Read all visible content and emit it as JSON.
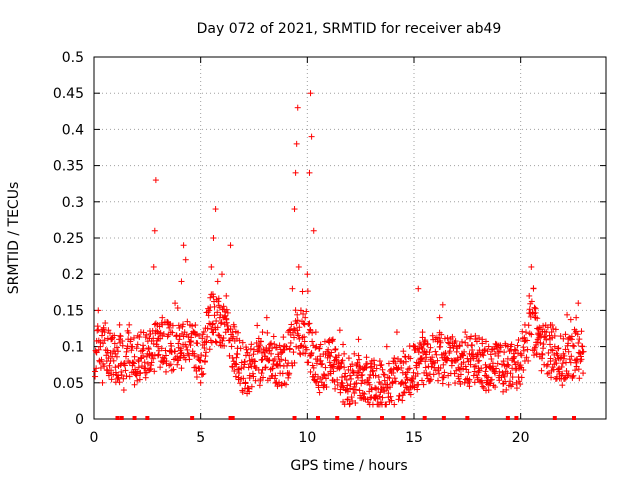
{
  "chart_data": {
    "type": "scatter",
    "title": "Day 072 of 2021, SRMTID for receiver ab49",
    "xlabel": "GPS time / hours",
    "ylabel": "SRMTID / TECUs",
    "xlim": [
      0,
      24
    ],
    "ylim": [
      0,
      0.5
    ],
    "x_ticks": [
      0,
      5,
      10,
      15,
      20
    ],
    "x_tick_labels": [
      "0",
      "5",
      "10",
      "15",
      "20"
    ],
    "y_ticks": [
      0,
      0.05,
      0.1,
      0.15,
      0.2,
      0.25,
      0.3,
      0.35,
      0.4,
      0.45,
      0.5
    ],
    "y_tick_labels": [
      "0",
      "0.05",
      "0.1",
      "0.15",
      "0.2",
      "0.25",
      "0.3",
      "0.35",
      "0.4",
      "0.45",
      "0.5"
    ],
    "grid": true,
    "marker": "+",
    "color": "#ff0000",
    "series": [
      {
        "name": "SRMTID",
        "points": [
          [
            0.1,
            0.07
          ],
          [
            0.2,
            0.15
          ],
          [
            0.3,
            0.1
          ],
          [
            0.4,
            0.05
          ],
          [
            0.5,
            0.12
          ],
          [
            0.6,
            0.08
          ],
          [
            0.7,
            0.06
          ],
          [
            0.8,
            0.11
          ],
          [
            1.0,
            0.09
          ],
          [
            1.2,
            0.13
          ],
          [
            1.4,
            0.04
          ],
          [
            1.6,
            0.08
          ],
          [
            1.8,
            0.1
          ],
          [
            2.0,
            0.06
          ],
          [
            2.2,
            0.12
          ],
          [
            2.4,
            0.07
          ],
          [
            2.6,
            0.09
          ],
          [
            2.8,
            0.21
          ],
          [
            2.85,
            0.26
          ],
          [
            2.9,
            0.33
          ],
          [
            3.0,
            0.1
          ],
          [
            3.2,
            0.14
          ],
          [
            3.4,
            0.08
          ],
          [
            3.6,
            0.12
          ],
          [
            3.8,
            0.16
          ],
          [
            4.0,
            0.11
          ],
          [
            4.1,
            0.19
          ],
          [
            4.2,
            0.24
          ],
          [
            4.3,
            0.22
          ],
          [
            4.5,
            0.13
          ],
          [
            4.7,
            0.09
          ],
          [
            4.9,
            0.07
          ],
          [
            5.0,
            0.05
          ],
          [
            5.2,
            0.08
          ],
          [
            5.4,
            0.15
          ],
          [
            5.5,
            0.21
          ],
          [
            5.6,
            0.25
          ],
          [
            5.7,
            0.29
          ],
          [
            5.8,
            0.19
          ],
          [
            5.9,
            0.14
          ],
          [
            6.0,
            0.2
          ],
          [
            6.2,
            0.17
          ],
          [
            6.4,
            0.24
          ],
          [
            6.5,
            0.12
          ],
          [
            6.7,
            0.09
          ],
          [
            6.9,
            0.07
          ],
          [
            7.1,
            0.05
          ],
          [
            7.3,
            0.06
          ],
          [
            7.5,
            0.08
          ],
          [
            7.7,
            0.1
          ],
          [
            7.9,
            0.12
          ],
          [
            8.1,
            0.14
          ],
          [
            8.3,
            0.09
          ],
          [
            8.5,
            0.06
          ],
          [
            8.7,
            0.08
          ],
          [
            8.9,
            0.1
          ],
          [
            9.1,
            0.12
          ],
          [
            9.3,
            0.18
          ],
          [
            9.4,
            0.29
          ],
          [
            9.45,
            0.34
          ],
          [
            9.5,
            0.38
          ],
          [
            9.55,
            0.43
          ],
          [
            9.6,
            0.21
          ],
          [
            9.7,
            0.15
          ],
          [
            9.8,
            0.1
          ],
          [
            9.9,
            0.14
          ],
          [
            10.0,
            0.2
          ],
          [
            10.1,
            0.34
          ],
          [
            10.15,
            0.45
          ],
          [
            10.2,
            0.39
          ],
          [
            10.3,
            0.26
          ],
          [
            10.4,
            0.12
          ],
          [
            10.6,
            0.08
          ],
          [
            10.8,
            0.06
          ],
          [
            11.0,
            0.09
          ],
          [
            11.2,
            0.11
          ],
          [
            11.4,
            0.07
          ],
          [
            11.6,
            0.05
          ],
          [
            11.8,
            0.04
          ],
          [
            12.0,
            0.06
          ],
          [
            12.2,
            0.09
          ],
          [
            12.4,
            0.11
          ],
          [
            12.6,
            0.07
          ],
          [
            12.8,
            0.05
          ],
          [
            13.0,
            0.03
          ],
          [
            13.2,
            0.06
          ],
          [
            13.4,
            0.08
          ],
          [
            13.6,
            0.04
          ],
          [
            13.8,
            0.03
          ],
          [
            14.0,
            0.05
          ],
          [
            14.2,
            0.12
          ],
          [
            14.4,
            0.08
          ],
          [
            14.6,
            0.05
          ],
          [
            14.8,
            0.07
          ],
          [
            15.0,
            0.1
          ],
          [
            15.2,
            0.18
          ],
          [
            15.4,
            0.12
          ],
          [
            15.6,
            0.06
          ],
          [
            15.8,
            0.08
          ],
          [
            16.0,
            0.11
          ],
          [
            16.2,
            0.14
          ],
          [
            16.4,
            0.09
          ],
          [
            16.6,
            0.06
          ],
          [
            16.8,
            0.08
          ],
          [
            17.0,
            0.1
          ],
          [
            17.2,
            0.07
          ],
          [
            17.4,
            0.12
          ],
          [
            17.6,
            0.09
          ],
          [
            17.8,
            0.06
          ],
          [
            18.0,
            0.08
          ],
          [
            18.2,
            0.11
          ],
          [
            18.4,
            0.05
          ],
          [
            18.6,
            0.07
          ],
          [
            18.8,
            0.09
          ],
          [
            19.0,
            0.06
          ],
          [
            19.2,
            0.08
          ],
          [
            19.4,
            0.1
          ],
          [
            19.6,
            0.07
          ],
          [
            19.8,
            0.05
          ],
          [
            20.0,
            0.09
          ],
          [
            20.2,
            0.13
          ],
          [
            20.4,
            0.17
          ],
          [
            20.5,
            0.21
          ],
          [
            20.6,
            0.18
          ],
          [
            20.7,
            0.14
          ],
          [
            20.8,
            0.11
          ],
          [
            21.0,
            0.09
          ],
          [
            21.2,
            0.12
          ],
          [
            21.4,
            0.08
          ],
          [
            21.6,
            0.1
          ],
          [
            21.8,
            0.07
          ],
          [
            22.0,
            0.09
          ],
          [
            22.2,
            0.06
          ],
          [
            22.4,
            0.11
          ],
          [
            22.6,
            0.14
          ],
          [
            22.7,
            0.16
          ],
          [
            22.8,
            0.08
          ],
          [
            22.9,
            0.1
          ]
        ]
      }
    ],
    "zero_markers": [
      1.1,
      1.3,
      1.9,
      2.5,
      4.6,
      6.4,
      6.5,
      9.4,
      10.5,
      11.4,
      12.4,
      13.5,
      14.5,
      15.5,
      16.4,
      17.5,
      19.4,
      19.8,
      21.6,
      22.5
    ],
    "density": {
      "seed": 72,
      "step_hours": 0.025,
      "trace_hours": [
        0.05,
        22.95
      ],
      "baseline": [
        [
          0,
          0.09
        ],
        [
          0.5,
          0.1
        ],
        [
          1,
          0.08
        ],
        [
          1.5,
          0.09
        ],
        [
          2,
          0.08
        ],
        [
          2.5,
          0.09
        ],
        [
          3,
          0.1
        ],
        [
          3.5,
          0.1
        ],
        [
          4,
          0.1
        ],
        [
          4.5,
          0.11
        ],
        [
          5,
          0.08
        ],
        [
          5.5,
          0.14
        ],
        [
          6,
          0.13
        ],
        [
          6.5,
          0.1
        ],
        [
          7,
          0.07
        ],
        [
          7.5,
          0.07
        ],
        [
          8,
          0.09
        ],
        [
          8.5,
          0.08
        ],
        [
          9,
          0.08
        ],
        [
          9.5,
          0.12
        ],
        [
          10,
          0.11
        ],
        [
          10.5,
          0.07
        ],
        [
          11,
          0.08
        ],
        [
          11.5,
          0.06
        ],
        [
          12,
          0.05
        ],
        [
          12.5,
          0.06
        ],
        [
          13,
          0.05
        ],
        [
          13.5,
          0.04
        ],
        [
          14,
          0.05
        ],
        [
          14.5,
          0.06
        ],
        [
          15,
          0.07
        ],
        [
          15.5,
          0.08
        ],
        [
          16,
          0.09
        ],
        [
          16.5,
          0.08
        ],
        [
          17,
          0.08
        ],
        [
          17.5,
          0.08
        ],
        [
          18,
          0.08
        ],
        [
          18.5,
          0.07
        ],
        [
          19,
          0.07
        ],
        [
          19.5,
          0.07
        ],
        [
          20,
          0.08
        ],
        [
          20.5,
          0.13
        ],
        [
          21,
          0.1
        ],
        [
          21.5,
          0.09
        ],
        [
          22,
          0.08
        ],
        [
          22.5,
          0.09
        ],
        [
          23,
          0.09
        ]
      ]
    }
  }
}
